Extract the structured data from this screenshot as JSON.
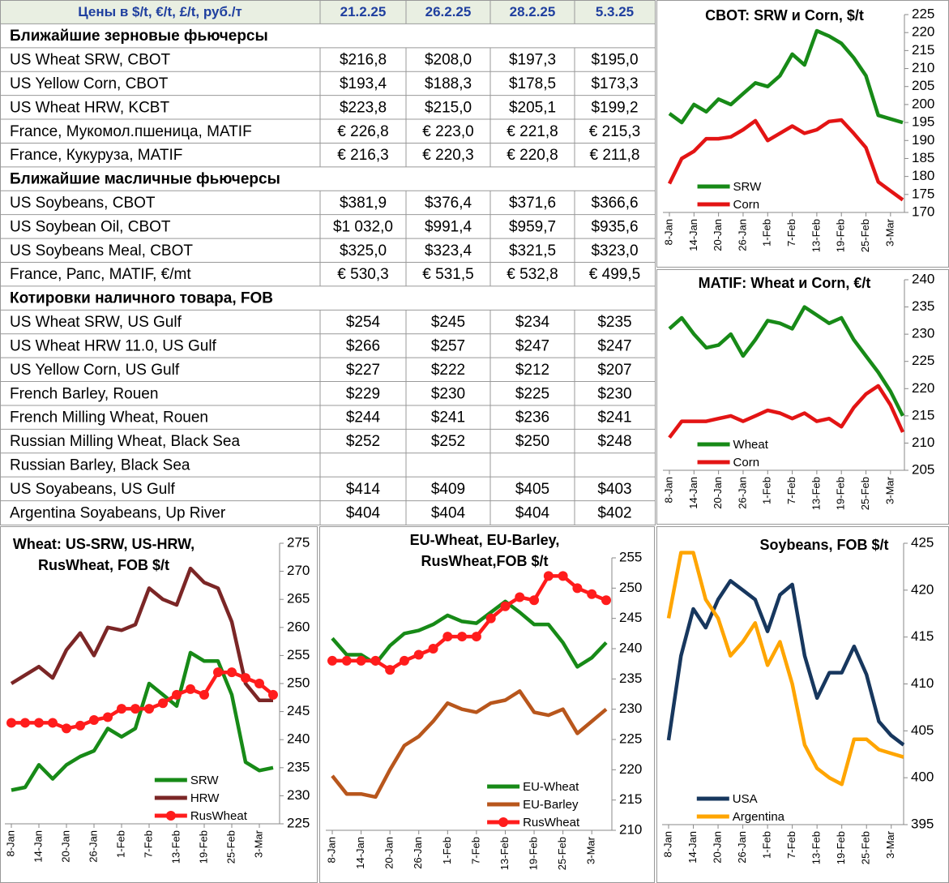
{
  "table": {
    "header": [
      "Цены в  $/t, €/t, £/t, руб./т",
      "21.2.25",
      "26.2.25",
      "28.2.25",
      "5.3.25"
    ],
    "sections": [
      {
        "title": "Ближайшие зерновые фьючерсы",
        "rows": [
          [
            "US Wheat SRW, CBOT",
            "$216,8",
            "$208,0",
            "$197,3",
            "$195,0"
          ],
          [
            "US Yellow Corn, CBOT",
            "$193,4",
            "$188,3",
            "$178,5",
            "$173,3"
          ],
          [
            "US Wheat HRW, KCBT",
            "$223,8",
            "$215,0",
            "$205,1",
            "$199,2"
          ],
          [
            "France, Мукомол.пшеница, MATIF",
            "€ 226,8",
            "€ 223,0",
            "€ 221,8",
            "€ 215,3"
          ],
          [
            "France, Кукуруза, MATIF",
            "€ 216,3",
            "€ 220,3",
            "€ 220,8",
            "€ 211,8"
          ]
        ]
      },
      {
        "title": "Ближайшие масличные фьючерсы",
        "rows": [
          [
            "US Soybeans, CBOT",
            "$381,9",
            "$376,4",
            "$371,6",
            "$366,6"
          ],
          [
            "US Soybean Oil, CBOT",
            "$1 032,0",
            "$991,4",
            "$959,7",
            "$935,6"
          ],
          [
            "US Soybeans Meal, CBOT",
            "$325,0",
            "$323,4",
            "$321,5",
            "$323,0"
          ],
          [
            "France, Рапс, MATIF, €/mt",
            "€ 530,3",
            "€ 531,5",
            "€ 532,8",
            "€ 499,5"
          ]
        ]
      },
      {
        "title": "Котировки наличного товара, FOB",
        "rows": [
          [
            "US Wheat SRW, US Gulf",
            "$254",
            "$245",
            "$234",
            "$235"
          ],
          [
            "US Wheat HRW 11.0, US Gulf",
            "$266",
            "$257",
            "$247",
            "$247"
          ],
          [
            "US Yellow Corn, US Gulf",
            "$227",
            "$222",
            "$212",
            "$207"
          ],
          [
            "French Barley, Rouen",
            "$229",
            "$230",
            "$225",
            "$230"
          ],
          [
            "French Milling Wheat, Rouen",
            "$244",
            "$241",
            "$236",
            "$241"
          ],
          [
            "Russian Milling Wheat, Black Sea",
            "$252",
            "$252",
            "$250",
            "$248"
          ],
          [
            "Russian Barley, Black Sea",
            null,
            null,
            null,
            null
          ],
          [
            "US Soyabeans, US Gulf",
            "$414",
            "$409",
            "$405",
            "$403"
          ],
          [
            "Argentina Soyabeans, Up River",
            "$404",
            "$404",
            "$404",
            "$402"
          ]
        ]
      }
    ]
  },
  "chart_data": [
    {
      "type": "line",
      "title": [
        "CBOT: SRW и Corn, $/t"
      ],
      "categories": [
        "8-Jan",
        null,
        "14-Jan",
        null,
        "20-Jan",
        null,
        "26-Jan",
        null,
        "1-Feb",
        null,
        "7-Feb",
        null,
        "13-Feb",
        null,
        "19-Feb",
        null,
        "25-Feb",
        null,
        "3-Mar",
        null
      ],
      "series": [
        {
          "name": "SRW",
          "color": "#178a17",
          "values": [
            197.5,
            195,
            200,
            198,
            201.5,
            200,
            203,
            206,
            205,
            208,
            214,
            211,
            220.5,
            219,
            217,
            213,
            208,
            197,
            196,
            195
          ]
        },
        {
          "name": "Corn",
          "color": "#e31414",
          "values": [
            178,
            185,
            187,
            190.5,
            190.5,
            191,
            193,
            195.5,
            190,
            192,
            194,
            192,
            193,
            195.3,
            195.7,
            192,
            188,
            178.5,
            176,
            173.5
          ]
        }
      ],
      "ylim": [
        170,
        225
      ],
      "yticks": [
        170,
        175,
        180,
        185,
        190,
        195,
        200,
        205,
        210,
        215,
        220,
        225
      ],
      "legend": "lower left"
    },
    {
      "type": "line",
      "title": [
        "MATIF: Wheat и Corn, €/t"
      ],
      "categories": [
        "8-Jan",
        null,
        "14-Jan",
        null,
        "20-Jan",
        null,
        "26-Jan",
        null,
        "1-Feb",
        null,
        "7-Feb",
        null,
        "13-Feb",
        null,
        "19-Feb",
        null,
        "25-Feb",
        null,
        "3-Mar",
        null
      ],
      "series": [
        {
          "name": "Wheat",
          "color": "#178a17",
          "values": [
            231,
            233,
            230,
            227.5,
            228,
            230,
            226,
            229,
            232.5,
            232,
            231,
            235,
            233.5,
            232,
            233,
            229,
            226,
            223,
            219.5,
            215
          ]
        },
        {
          "name": "Corn",
          "color": "#e31414",
          "values": [
            211,
            214,
            214,
            214,
            214.5,
            215,
            214,
            215,
            216,
            215.5,
            214.5,
            215.5,
            214,
            214.5,
            213,
            216.5,
            219,
            220.5,
            217,
            212
          ]
        }
      ],
      "ylim": [
        205,
        240
      ],
      "yticks": [
        205,
        210,
        215,
        220,
        225,
        230,
        235,
        240
      ],
      "legend": "lower left"
    },
    {
      "type": "line",
      "title": [
        "Wheat: US-SRW, US-HRW,",
        "RusWheat, FOB $/t"
      ],
      "categories": [
        "8-Jan",
        null,
        "14-Jan",
        null,
        "20-Jan",
        null,
        "26-Jan",
        null,
        "1-Feb",
        null,
        "7-Feb",
        null,
        "13-Feb",
        null,
        "19-Feb",
        null,
        "25-Feb",
        null,
        "3-Mar",
        null
      ],
      "series": [
        {
          "name": "SRW",
          "color": "#178a17",
          "values": [
            231,
            231.5,
            235.5,
            233,
            235.5,
            237,
            238,
            242,
            240.5,
            242,
            250,
            248,
            246,
            255.5,
            254,
            254,
            248,
            236,
            234.5,
            235
          ]
        },
        {
          "name": "HRW",
          "color": "#7b2626",
          "values": [
            250,
            251.5,
            253,
            251,
            256,
            259,
            255,
            260,
            259.5,
            260.5,
            267,
            265,
            264,
            270.5,
            268,
            267,
            261,
            250,
            247,
            247
          ]
        },
        {
          "name": "RusWheat",
          "color": "#ff1c1c",
          "markers": true,
          "values": [
            243,
            243,
            243,
            243,
            242,
            242.5,
            243.5,
            244,
            245.5,
            245.5,
            245.5,
            246.5,
            248,
            249,
            248,
            252,
            252,
            251,
            250,
            248
          ]
        }
      ],
      "ylim": [
        225,
        275
      ],
      "yticks": [
        225,
        230,
        235,
        240,
        245,
        250,
        255,
        260,
        265,
        270,
        275
      ],
      "legend": "lower right"
    },
    {
      "type": "line",
      "title": [
        "EU-Wheat, EU-Barley,",
        "RusWheat,FOB $/t"
      ],
      "categories": [
        "8-Jan",
        null,
        "14-Jan",
        null,
        "20-Jan",
        null,
        "26-Jan",
        null,
        "1-Feb",
        null,
        "7-Feb",
        null,
        "13-Feb",
        null,
        "19-Feb",
        null,
        "25-Feb",
        null,
        "3-Mar",
        null
      ],
      "series": [
        {
          "name": "EU-Wheat",
          "color": "#178a17",
          "values": [
            241.7,
            239,
            239,
            237.5,
            240.5,
            242.5,
            243,
            244,
            245.5,
            244.5,
            244.2,
            246,
            247.8,
            246,
            244,
            244,
            241,
            237,
            238.5,
            241
          ]
        },
        {
          "name": "EU-Barley",
          "color": "#b8561c",
          "values": [
            219,
            216,
            216,
            215.5,
            220,
            224,
            225.5,
            228,
            231,
            230,
            229.5,
            231,
            231.5,
            233,
            229.5,
            229,
            230,
            226,
            228,
            230
          ]
        },
        {
          "name": "RusWheat",
          "color": "#ff1c1c",
          "markers": true,
          "values": [
            238,
            238,
            238,
            238,
            236.5,
            238,
            239,
            240,
            242,
            242,
            242,
            245,
            247,
            248.5,
            248,
            252,
            252,
            250,
            249,
            248
          ]
        }
      ],
      "ylim": [
        210,
        255
      ],
      "yticks": [
        210,
        215,
        220,
        225,
        230,
        235,
        240,
        245,
        250,
        255
      ],
      "legend": "lower right"
    },
    {
      "type": "line",
      "title": [
        "Soybeans, FOB $/t"
      ],
      "categories": [
        "8-Jan",
        null,
        "14-Jan",
        null,
        "20-Jan",
        null,
        "26-Jan",
        null,
        "1-Feb",
        null,
        "7-Feb",
        null,
        "13-Feb",
        null,
        "19-Feb",
        null,
        "25-Feb",
        null,
        "3-Mar",
        null
      ],
      "series": [
        {
          "name": "USA",
          "color": "#17375e",
          "values": [
            404,
            413,
            418,
            416,
            419,
            421,
            420,
            419,
            415.6,
            419.5,
            420.6,
            413,
            408.5,
            411.2,
            411.2,
            414,
            411,
            406,
            404.5,
            403.5
          ]
        },
        {
          "name": "Argentina",
          "color": "#ffa500",
          "values": [
            417,
            424,
            424,
            419,
            417,
            413,
            414.5,
            416.5,
            412,
            414.5,
            410,
            403.5,
            401,
            400,
            399.3,
            404.1,
            404.1,
            403,
            402.6,
            402.2
          ]
        }
      ],
      "ylim": [
        395,
        425
      ],
      "yticks": [
        395,
        400,
        405,
        410,
        415,
        420,
        425
      ],
      "legend": "lower left"
    }
  ]
}
